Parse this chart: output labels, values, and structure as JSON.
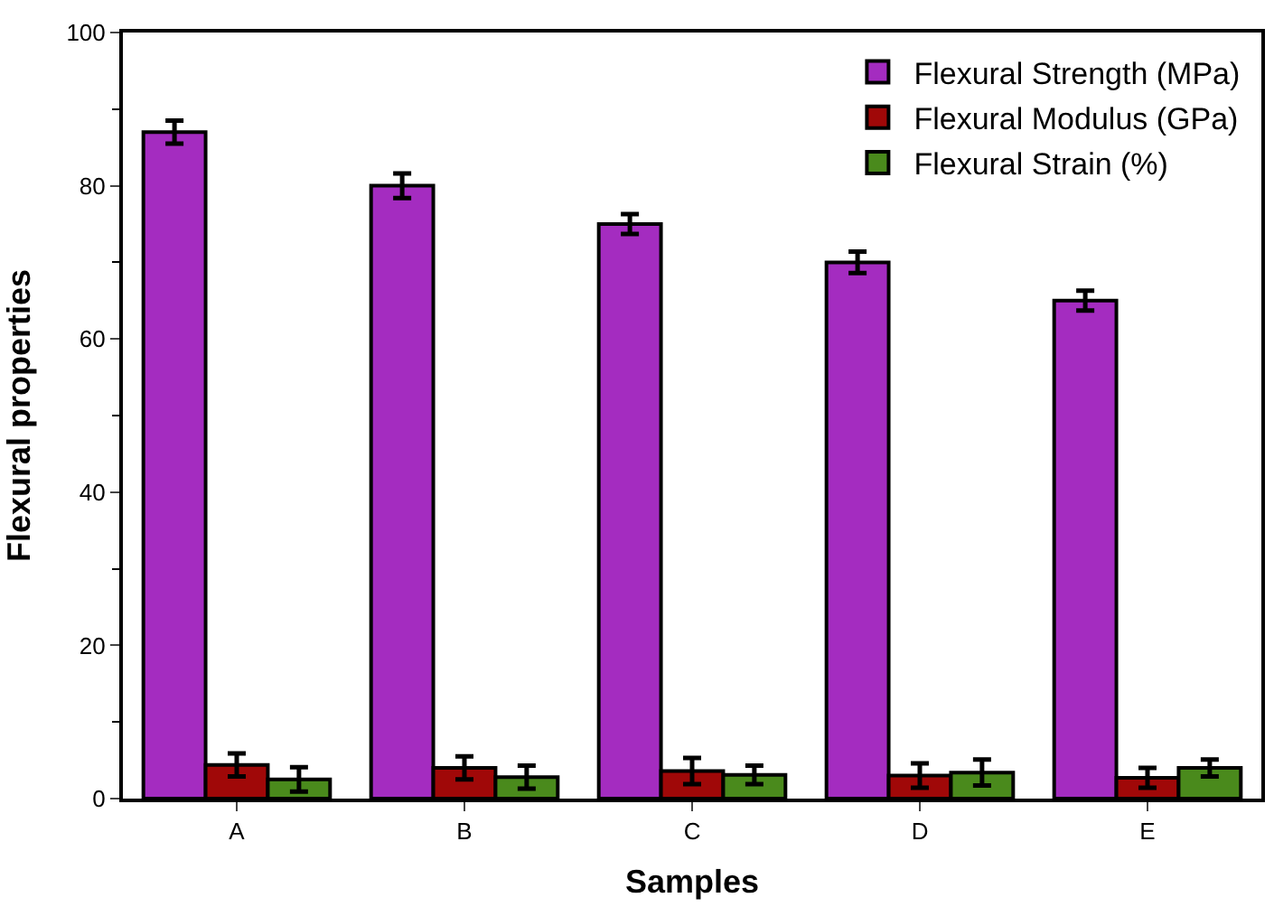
{
  "chart_data": {
    "type": "bar",
    "xlabel": "Samples",
    "ylabel": "Flexural properties",
    "categories": [
      "A",
      "B",
      "C",
      "D",
      "E"
    ],
    "series": [
      {
        "name": "Flexural Strength (MPa)",
        "color": "#a42cc0",
        "values": [
          87,
          80,
          75,
          70,
          65
        ],
        "errors": [
          1.5,
          1.6,
          1.3,
          1.4,
          1.3
        ]
      },
      {
        "name": "Flexural Modulus (GPa)",
        "color": "#a00808",
        "values": [
          4.4,
          4.0,
          3.6,
          3.0,
          2.7
        ],
        "errors": [
          1.5,
          1.5,
          1.7,
          1.6,
          1.3
        ]
      },
      {
        "name": "Flexural Strain (%)",
        "color": "#4a8a1c",
        "values": [
          2.5,
          2.8,
          3.1,
          3.4,
          4.0
        ],
        "errors": [
          1.6,
          1.5,
          1.2,
          1.7,
          1.1
        ]
      }
    ],
    "ylim": [
      0,
      100
    ],
    "yticks": [
      0,
      20,
      40,
      60,
      80,
      100
    ],
    "legend": "top right"
  }
}
